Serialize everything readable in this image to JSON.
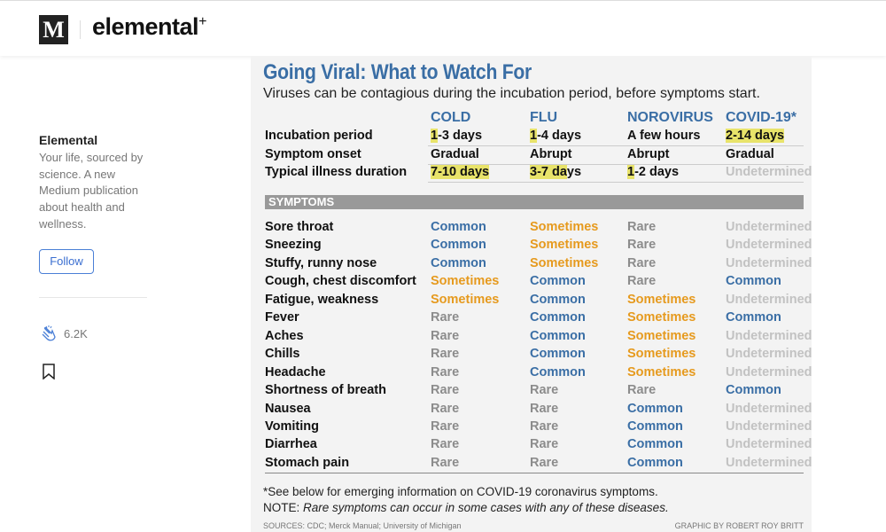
{
  "header": {
    "logo": "M",
    "brand": "elemental",
    "brand_mark": "+"
  },
  "sidebar": {
    "name": "Elemental",
    "description": "Your life, sourced by science. A new Medium publication about health and wellness.",
    "follow_label": "Follow",
    "claps": "6.2K"
  },
  "graphic": {
    "title": "Going Viral: What to Watch For",
    "subtitle": "Viruses can be contagious during the incubation period, before symptoms start.",
    "columns": [
      "COLD",
      "FLU",
      "NOROVIRUS",
      "COVID-19*"
    ],
    "overview": [
      {
        "label": "Incubation period",
        "cells": [
          [
            "1",
            "-3 days"
          ],
          [
            "1",
            "-4 days"
          ],
          [
            "",
            "A few hours"
          ],
          [
            "2-14 days",
            ""
          ]
        ]
      },
      {
        "label": "Symptom onset",
        "cells": [
          [
            "",
            "Gradual"
          ],
          [
            "",
            "Abrupt"
          ],
          [
            "",
            "Abrupt"
          ],
          [
            "",
            "Gradual"
          ]
        ]
      },
      {
        "label": "Typical illness duration",
        "cells": [
          [
            "7-10 days",
            ""
          ],
          [
            "3-7 da",
            "ys"
          ],
          [
            "1",
            "-2 days"
          ],
          [
            "",
            "Undetermined"
          ]
        ]
      }
    ],
    "symptoms_header": "SYMPTOMS",
    "symptoms": [
      {
        "label": "Sore throat",
        "cells": [
          "Common",
          "Sometimes",
          "Rare",
          "Undetermined"
        ]
      },
      {
        "label": "Sneezing",
        "cells": [
          "Common",
          "Sometimes",
          "Rare",
          "Undetermined"
        ]
      },
      {
        "label": "Stuffy, runny nose",
        "cells": [
          "Common",
          "Sometimes",
          "Rare",
          "Undetermined"
        ]
      },
      {
        "label": "Cough, chest discomfort",
        "cells": [
          "Sometimes",
          "Common",
          "Rare",
          "Common"
        ]
      },
      {
        "label": "Fatigue, weakness",
        "cells": [
          "Sometimes",
          "Common",
          "Sometimes",
          "Undetermined"
        ]
      },
      {
        "label": "Fever",
        "cells": [
          "Rare",
          "Common",
          "Sometimes",
          "Common"
        ]
      },
      {
        "label": "Aches",
        "cells": [
          "Rare",
          "Common",
          "Sometimes",
          "Undetermined"
        ]
      },
      {
        "label": "Chills",
        "cells": [
          "Rare",
          "Common",
          "Sometimes",
          "Undetermined"
        ]
      },
      {
        "label": "Headache",
        "cells": [
          "Rare",
          "Common",
          "Sometimes",
          "Undetermined"
        ]
      },
      {
        "label": "Shortness of breath",
        "cells": [
          "Rare",
          "Rare",
          "Rare",
          "Common"
        ]
      },
      {
        "label": "Nausea",
        "cells": [
          "Rare",
          "Rare",
          "Common",
          "Undetermined"
        ]
      },
      {
        "label": "Vomiting",
        "cells": [
          "Rare",
          "Rare",
          "Common",
          "Undetermined"
        ]
      },
      {
        "label": "Diarrhea",
        "cells": [
          "Rare",
          "Rare",
          "Common",
          "Undetermined"
        ]
      },
      {
        "label": "Stomach pain",
        "cells": [
          "Rare",
          "Rare",
          "Common",
          "Undetermined"
        ]
      }
    ],
    "footnote": "*See below for emerging information on COVID-19 coronavirus symptoms.",
    "note_prefix": "NOTE: ",
    "note": "Rare symptoms can occur in some cases with any of these diseases.",
    "sources": "SOURCES: CDC; Merck Manual; University of Michigan",
    "credit": "GRAPHIC BY ROBERT ROY BRITT"
  },
  "colors": {
    "Common": "#3a6ea5",
    "Sometimes": "#e69a1e",
    "Rare": "#8c8c8c",
    "Undetermined": "#c2c2c2",
    "highlight": "#e8e36a"
  }
}
